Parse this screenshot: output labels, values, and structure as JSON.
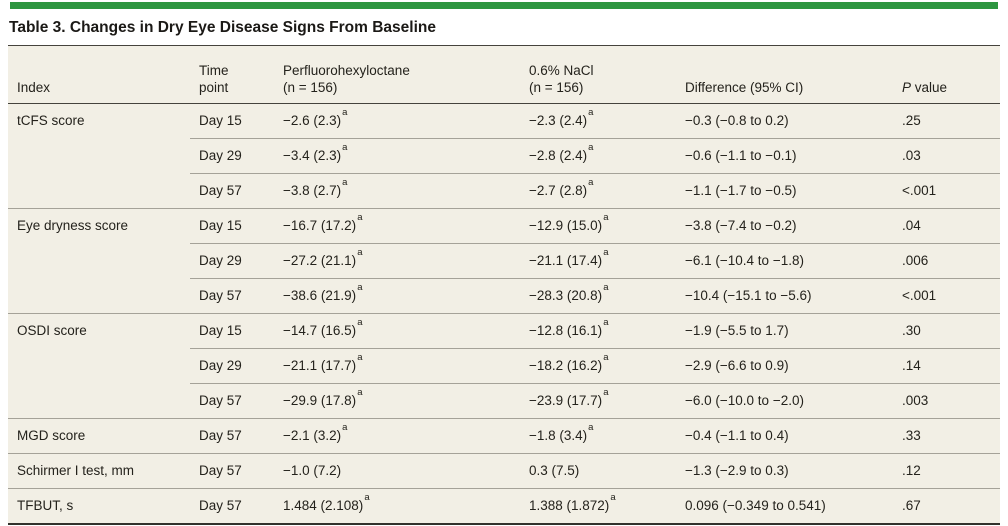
{
  "colors": {
    "accent_green": "#2d9640",
    "table_background": "#f2efe5",
    "rule_dark": "#45433d",
    "rule_light": "#a5a298",
    "text": "#24221c"
  },
  "table": {
    "title": "Table 3. Changes in Dry Eye Disease Signs From Baseline",
    "footnote_marker": "a",
    "headers": {
      "index": "Index",
      "time_point": "Time\npoint",
      "drug": "Perfluorohexyloctane\n(n = 156)",
      "nacl": "0.6% NaCl\n(n = 156)",
      "difference": "Difference (95% CI)",
      "p_italic": "P",
      "p_rest": " value"
    },
    "rows": [
      {
        "index": "tCFS score",
        "time": "Day 15",
        "drug": "−2.6 (2.3)",
        "drug_sup": "a",
        "nacl": "−2.3 (2.4)",
        "nacl_sup": "a",
        "diff": "−0.3 (−0.8 to 0.2)",
        "p": ".25"
      },
      {
        "time": "Day 29",
        "drug": "−3.4 (2.3)",
        "drug_sup": "a",
        "nacl": "−2.8 (2.4)",
        "nacl_sup": "a",
        "diff": "−0.6 (−1.1 to −0.1)",
        "p": ".03"
      },
      {
        "time": "Day 57",
        "drug": "−3.8 (2.7)",
        "drug_sup": "a",
        "nacl": "−2.7 (2.8)",
        "nacl_sup": "a",
        "diff": "−1.1 (−1.7 to −0.5)",
        "p": "<.001"
      },
      {
        "index": "Eye dryness score",
        "time": "Day 15",
        "drug": "−16.7 (17.2)",
        "drug_sup": "a",
        "nacl": "−12.9 (15.0)",
        "nacl_sup": "a",
        "diff": "−3.8 (−7.4 to −0.2)",
        "p": ".04"
      },
      {
        "time": "Day 29",
        "drug": "−27.2 (21.1)",
        "drug_sup": "a",
        "nacl": "−21.1 (17.4)",
        "nacl_sup": "a",
        "diff": "−6.1 (−10.4 to −1.8)",
        "p": ".006"
      },
      {
        "time": "Day 57",
        "drug": "−38.6 (21.9)",
        "drug_sup": "a",
        "nacl": "−28.3 (20.8)",
        "nacl_sup": "a",
        "diff": "−10.4 (−15.1 to −5.6)",
        "p": "<.001"
      },
      {
        "index": "OSDI score",
        "time": "Day 15",
        "drug": "−14.7 (16.5)",
        "drug_sup": "a",
        "nacl": "−12.8 (16.1)",
        "nacl_sup": "a",
        "diff": "−1.9 (−5.5 to 1.7)",
        "p": ".30"
      },
      {
        "time": "Day 29",
        "drug": "−21.1 (17.7)",
        "drug_sup": "a",
        "nacl": "−18.2 (16.2)",
        "nacl_sup": "a",
        "diff": "−2.9 (−6.6 to 0.9)",
        "p": ".14"
      },
      {
        "time": "Day 57",
        "drug": "−29.9 (17.8)",
        "drug_sup": "a",
        "nacl": "−23.9 (17.7)",
        "nacl_sup": "a",
        "diff": "−6.0 (−10.0 to −2.0)",
        "p": ".003"
      },
      {
        "index": "MGD score",
        "time": "Day 57",
        "drug": "−2.1 (3.2)",
        "drug_sup": "a",
        "nacl": "−1.8 (3.4)",
        "nacl_sup": "a",
        "diff": "−0.4 (−1.1 to 0.4)",
        "p": ".33"
      },
      {
        "index": "Schirmer I test, mm",
        "time": "Day 57",
        "drug": "−1.0 (7.2)",
        "nacl": "0.3 (7.5)",
        "diff": "−1.3 (−2.9 to 0.3)",
        "p": ".12"
      },
      {
        "index": "TFBUT, s",
        "time": "Day 57",
        "drug": "1.484 (2.108)",
        "drug_sup": "a",
        "nacl": "1.388 (1.872)",
        "nacl_sup": "a",
        "diff": "0.096 (−0.349 to 0.541)",
        "p": ".67"
      }
    ]
  }
}
